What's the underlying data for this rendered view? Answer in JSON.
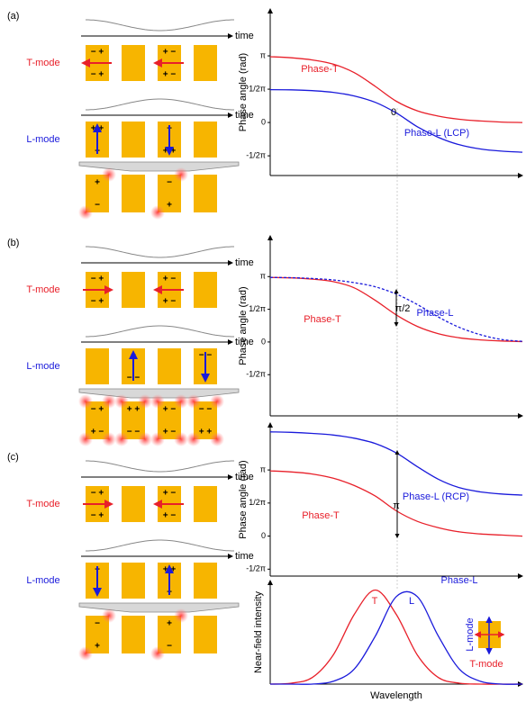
{
  "panels": [
    {
      "label": "(a)",
      "time_label": "time",
      "rows": [
        {
          "mode": "T-mode",
          "color": "#e8202a",
          "charges": [
            [
              "− +",
              "− +"
            ],
            null,
            [
              "+ −",
              "+ −"
            ],
            null
          ]
        },
        {
          "mode": "L-mode",
          "color": "#1a1adb",
          "charges": [
            [
              "+ +",
              "−"
            ],
            null,
            [
              "−",
              "+ +"
            ],
            null
          ]
        }
      ],
      "near_field_charges": [
        [
          "+",
          "−"
        ],
        null,
        [
          "−",
          "+"
        ],
        null
      ]
    },
    {
      "label": "(b)",
      "time_label": "time",
      "rows": [
        {
          "mode": "T-mode",
          "color": "#e8202a",
          "charges": [
            [
              "− +",
              "− +"
            ],
            null,
            [
              "+ −",
              "+ −"
            ],
            null
          ]
        },
        {
          "mode": "L-mode",
          "color": "#1a1adb",
          "charges": [
            null,
            [
              "+",
              "− −"
            ],
            null,
            [
              "− −",
              "+"
            ]
          ]
        }
      ],
      "near_field_charges": [
        [
          "− +",
          "+ −"
        ],
        [
          "+ +",
          "− −"
        ],
        [
          "+ −",
          "+ −"
        ],
        [
          "− −",
          "+ +"
        ]
      ]
    },
    {
      "label": "(c)",
      "time_label": "time",
      "rows": [
        {
          "mode": "T-mode",
          "color": "#e8202a",
          "charges": [
            [
              "− +",
              "− +"
            ],
            null,
            [
              "+ −",
              "+ −"
            ],
            null
          ]
        },
        {
          "mode": "L-mode",
          "color": "#1a1adb",
          "charges": [
            [
              "−",
              "+"
            ],
            null,
            [
              "+ +",
              "−"
            ],
            null
          ]
        }
      ],
      "near_field_charges": [
        [
          "−",
          "+"
        ],
        null,
        [
          "+",
          "−"
        ],
        null
      ]
    }
  ],
  "chart_data": [
    {
      "type": "line",
      "ylabel": "Phase angle (rad)",
      "x": [
        0,
        1,
        2,
        3,
        4,
        5,
        6,
        7,
        8,
        9,
        10,
        11,
        12
      ],
      "xlim": [
        0,
        12
      ],
      "ylim": [
        -2.5,
        5.35
      ],
      "yticks": [
        {
          "value": 3.1416,
          "label": "π"
        },
        {
          "value": 1.5708,
          "label": "1/2π"
        },
        0,
        {
          "value": -1.5708,
          "label": "-1/2π"
        }
      ],
      "series": [
        {
          "name": "Phase-T",
          "color": "#e8202a",
          "values": [
            3.1,
            3.05,
            2.95,
            2.75,
            2.35,
            1.7,
            1.0,
            0.55,
            0.3,
            0.15,
            0.07,
            0.02,
            0.0
          ]
        },
        {
          "name": "Phase-L (LCP)",
          "color": "#1a1adb",
          "values": [
            1.55,
            1.54,
            1.5,
            1.42,
            1.25,
            0.95,
            0.45,
            -0.2,
            -0.7,
            -1.05,
            -1.25,
            -1.35,
            -1.4
          ]
        }
      ],
      "annotations": [
        "0"
      ]
    },
    {
      "type": "line",
      "ylabel": "Phase angle (rad)",
      "x": [
        0,
        1,
        2,
        3,
        4,
        5,
        6,
        7,
        8,
        9,
        10,
        11,
        12
      ],
      "xlim": [
        0,
        12
      ],
      "ylim": [
        -3.55,
        5.1
      ],
      "yticks": [
        {
          "value": 3.1416,
          "label": "π"
        },
        {
          "value": 1.5708,
          "label": "1/2π"
        },
        0,
        {
          "value": -1.5708,
          "label": "-1/2π"
        }
      ],
      "series": [
        {
          "name": "Phase-T",
          "color": "#e8202a",
          "values": [
            3.1,
            3.08,
            3.02,
            2.9,
            2.6,
            2.0,
            1.3,
            0.75,
            0.4,
            0.2,
            0.1,
            0.05,
            0.02
          ]
        },
        {
          "name": "Phase-L",
          "color": "#1a1adb",
          "dashed": true,
          "values": [
            3.1,
            3.09,
            3.05,
            2.98,
            2.85,
            2.65,
            2.3,
            1.8,
            1.2,
            0.7,
            0.35,
            0.12,
            0.03
          ]
        }
      ],
      "annotations": [
        "π/2"
      ]
    },
    {
      "type": "line",
      "ylabel": "Phase angle (rad)",
      "x": [
        0,
        1,
        2,
        3,
        4,
        5,
        6,
        7,
        8,
        9,
        10,
        11,
        12
      ],
      "xlim": [
        0,
        12
      ],
      "ylim": [
        -1.9,
        5.37
      ],
      "yticks": [
        {
          "value": 3.1416,
          "label": "π"
        },
        {
          "value": 1.5708,
          "label": "1/2π"
        },
        0,
        {
          "value": -1.5708,
          "label": "-1/2π"
        }
      ],
      "series": [
        {
          "name": "Phase-T",
          "color": "#e8202a",
          "values": [
            3.1,
            3.05,
            2.95,
            2.75,
            2.4,
            1.9,
            1.2,
            0.7,
            0.4,
            0.2,
            0.1,
            0.05,
            0.0
          ]
        },
        {
          "name": "Phase-L (RCP)",
          "color": "#1a1adb",
          "values": [
            4.95,
            4.93,
            4.88,
            4.8,
            4.65,
            4.4,
            3.95,
            3.3,
            2.7,
            2.3,
            2.1,
            2.0,
            1.95
          ]
        }
      ],
      "annotations": [
        "π"
      ]
    },
    {
      "type": "line",
      "ylabel": "Near-field intensity",
      "xlabel": "Wavelength",
      "x": [
        0,
        1,
        2,
        3,
        4,
        5,
        6,
        7,
        8,
        9,
        10,
        11,
        12
      ],
      "xlim": [
        0,
        12
      ],
      "ylim": [
        0,
        1.1
      ],
      "series": [
        {
          "name": "T",
          "color": "#e8202a",
          "values": [
            0,
            0.01,
            0.07,
            0.31,
            0.74,
            1,
            0.74,
            0.31,
            0.07,
            0.01,
            0,
            0,
            0
          ]
        },
        {
          "name": "L",
          "color": "#1a1adb",
          "values": [
            0,
            0,
            0,
            0.03,
            0.16,
            0.51,
            0.93,
            0.93,
            0.51,
            0.16,
            0.03,
            0,
            0
          ]
        }
      ],
      "annotations": [
        "Phase-L",
        "L-mode",
        "T-mode"
      ]
    }
  ]
}
